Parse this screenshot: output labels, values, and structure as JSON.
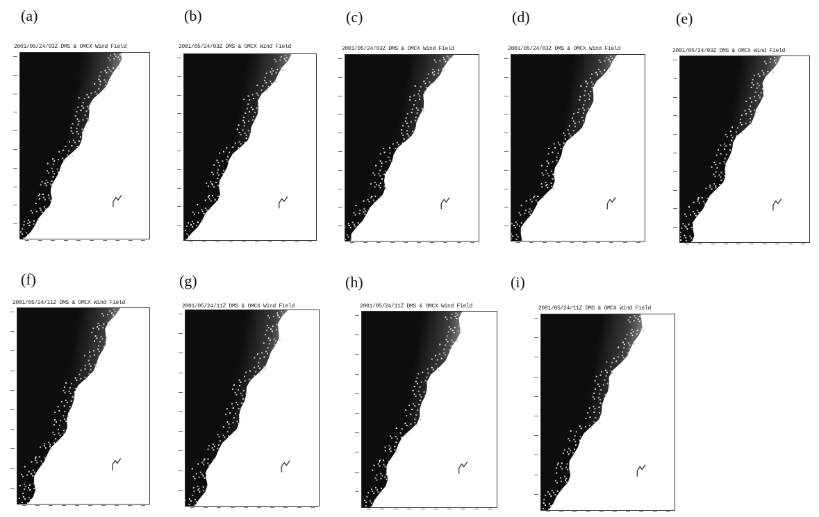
{
  "panels": [
    {
      "label": "(a)",
      "header": "2001/05/24/03Z   DMS & OMCX Wind Field"
    },
    {
      "label": "(b)",
      "header": "2001/05/24/03Z   DMS & OMCX Wind Field"
    },
    {
      "label": "(c)",
      "header": "2001/05/24/03Z   DMS & OMCX Wind Field"
    },
    {
      "label": "(d)",
      "header": "2001/05/24/03Z   DMS & OMCX Wind Field"
    },
    {
      "label": "(e)",
      "header": "2001/05/24/03Z   DMS & OMCX Wind Field"
    },
    {
      "label": "(f)",
      "header": "2001/05/24/11Z   DMS & OMCX Wind Field"
    },
    {
      "label": "(g)",
      "header": "2001/05/24/11Z   DMS & OMCX Wind Field"
    },
    {
      "label": "(h)",
      "header": "2001/05/24/11Z   DMS & OMCX Wind Field"
    },
    {
      "label": "(i)",
      "header": "2001/05/24/11Z   DMS & OMCX Wind Field"
    }
  ],
  "colors": {
    "land_dark": "#0d0d0d",
    "land_mid": "#3a3a3a",
    "coast": "#9a9a9a",
    "sea": "#ffffff"
  }
}
